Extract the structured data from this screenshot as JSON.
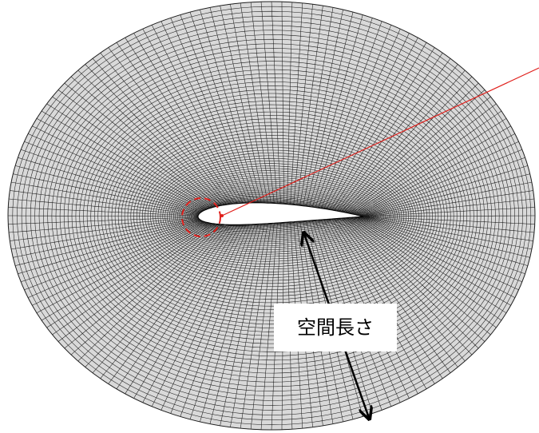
{
  "annotation": {
    "label": "空間長さ"
  }
}
